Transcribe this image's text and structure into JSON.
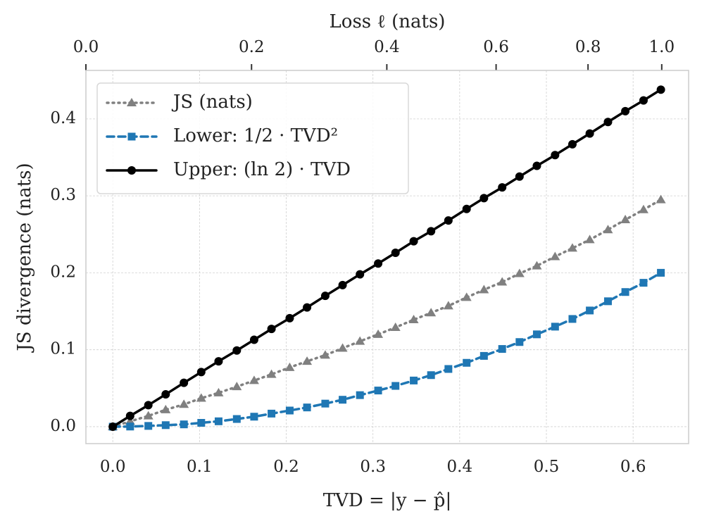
{
  "chart_data": {
    "type": "line",
    "xlabel": "TVD = |y − p̂|",
    "ylabel": "JS divergence (nats)",
    "x2label": "Loss ℓ (nats)",
    "x": [
      0,
      0.02,
      0.041,
      0.061,
      0.082,
      0.102,
      0.122,
      0.143,
      0.163,
      0.183,
      0.204,
      0.224,
      0.245,
      0.265,
      0.285,
      0.306,
      0.326,
      0.347,
      0.367,
      0.387,
      0.408,
      0.428,
      0.449,
      0.469,
      0.489,
      0.51,
      0.53,
      0.55,
      0.571,
      0.591,
      0.612,
      0.632
    ],
    "series": [
      {
        "name": "JS (nats)",
        "color": "#808080",
        "style": "dotted",
        "marker": "triangle",
        "values": [
          0,
          0.007,
          0.014,
          0.022,
          0.029,
          0.037,
          0.044,
          0.052,
          0.06,
          0.068,
          0.077,
          0.085,
          0.093,
          0.102,
          0.111,
          0.12,
          0.129,
          0.139,
          0.148,
          0.157,
          0.168,
          0.178,
          0.188,
          0.199,
          0.209,
          0.221,
          0.232,
          0.243,
          0.256,
          0.269,
          0.282,
          0.295
        ]
      },
      {
        "name": "Lower: 1/2 · TVD²",
        "color": "#1f77b4",
        "style": "dashed",
        "marker": "square",
        "values": [
          0,
          0.0002,
          0.001,
          0.002,
          0.003,
          0.005,
          0.007,
          0.01,
          0.013,
          0.017,
          0.021,
          0.025,
          0.03,
          0.035,
          0.041,
          0.047,
          0.053,
          0.06,
          0.067,
          0.075,
          0.083,
          0.092,
          0.101,
          0.11,
          0.12,
          0.13,
          0.14,
          0.151,
          0.163,
          0.175,
          0.187,
          0.2
        ]
      },
      {
        "name": "Upper: (ln 2) · TVD",
        "color": "#000000",
        "style": "solid",
        "marker": "circle",
        "values": [
          0,
          0.014,
          0.028,
          0.042,
          0.057,
          0.071,
          0.085,
          0.099,
          0.113,
          0.127,
          0.141,
          0.155,
          0.17,
          0.184,
          0.198,
          0.212,
          0.226,
          0.241,
          0.254,
          0.268,
          0.283,
          0.297,
          0.311,
          0.325,
          0.339,
          0.353,
          0.367,
          0.381,
          0.396,
          0.41,
          0.424,
          0.438
        ]
      }
    ],
    "xlim": [
      -0.031,
      0.664
    ],
    "xticks": [
      {
        "value": 0,
        "label": "0.0"
      },
      0.1,
      0.2,
      0.3,
      0.4,
      0.5,
      0.6
    ],
    "ylim": [
      -0.022,
      0.463
    ],
    "yticks": [
      {
        "value": 0,
        "label": "0.0"
      },
      0.1,
      0.2,
      0.3,
      0.4
    ],
    "x2ticks": [
      {
        "value": 0,
        "label": "0.0"
      },
      0.2,
      0.4,
      0.6,
      0.8,
      {
        "value": 1,
        "label": "1.0"
      }
    ],
    "x2_at": [
      -0.031,
      0.16,
      0.316,
      0.442,
      0.548,
      0.633
    ],
    "grid": true,
    "legend": "upper left"
  }
}
